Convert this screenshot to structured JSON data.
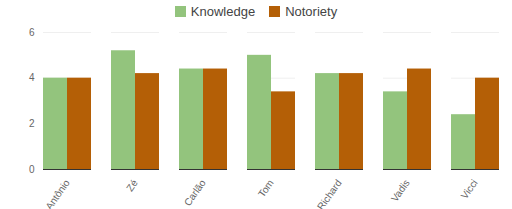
{
  "chart_data": {
    "type": "bar",
    "categories": [
      "Antônio",
      "Zé",
      "Carlão",
      "Tom",
      "Richard",
      "Vadis",
      "Vicci"
    ],
    "series": [
      {
        "name": "Knowledge",
        "color": "#93c47d",
        "values": [
          4,
          5.2,
          4.4,
          5,
          4.2,
          3.4,
          2.4
        ]
      },
      {
        "name": "Notoriety",
        "color": "#b45f06",
        "values": [
          4,
          4.2,
          4.4,
          3.4,
          4.2,
          4.4,
          4
        ]
      }
    ],
    "ylim": [
      0,
      6
    ],
    "yticks": [
      0,
      2,
      4,
      6
    ],
    "grid": true,
    "legend": "top"
  }
}
